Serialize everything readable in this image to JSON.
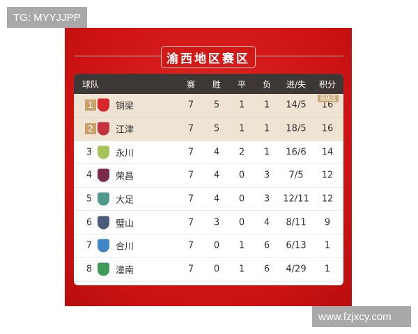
{
  "watermarks": {
    "top_left": "TG: MYYJJPP",
    "bottom_right": "www.fzjxcy.com"
  },
  "title": "渝西地区赛区",
  "headers": {
    "team": "球队",
    "played": "赛",
    "won": "胜",
    "drawn": "平",
    "lost": "负",
    "goals": "进/失",
    "points": "积分"
  },
  "promotion_badge": "晋级区",
  "colors": {
    "panel": "#d11a17",
    "header": "#3d3735",
    "promotion_row": "#efe4d4",
    "rank_badge": "#c8a26a"
  },
  "rows": [
    {
      "rank": "1",
      "team": "铜梁",
      "played": "7",
      "won": "5",
      "drawn": "1",
      "lost": "1",
      "goals": "14/5",
      "points": "16",
      "logo_color": "#d8262a"
    },
    {
      "rank": "2",
      "team": "江津",
      "played": "7",
      "won": "5",
      "drawn": "1",
      "lost": "1",
      "goals": "18/5",
      "points": "16",
      "logo_color": "#c5333f"
    },
    {
      "rank": "3",
      "team": "永川",
      "played": "7",
      "won": "4",
      "drawn": "2",
      "lost": "1",
      "goals": "16/6",
      "points": "14",
      "logo_color": "#a6c45a"
    },
    {
      "rank": "4",
      "team": "荣昌",
      "played": "7",
      "won": "4",
      "drawn": "0",
      "lost": "3",
      "goals": "7/5",
      "points": "12",
      "logo_color": "#7a2a4a"
    },
    {
      "rank": "5",
      "team": "大足",
      "played": "7",
      "won": "4",
      "drawn": "0",
      "lost": "3",
      "goals": "12/11",
      "points": "12",
      "logo_color": "#4f9a8a"
    },
    {
      "rank": "6",
      "team": "璧山",
      "played": "7",
      "won": "3",
      "drawn": "0",
      "lost": "4",
      "goals": "8/11",
      "points": "9",
      "logo_color": "#4a5a7a"
    },
    {
      "rank": "7",
      "team": "合川",
      "played": "7",
      "won": "0",
      "drawn": "1",
      "lost": "6",
      "goals": "6/13",
      "points": "1",
      "logo_color": "#3f86c6"
    },
    {
      "rank": "8",
      "team": "潼南",
      "played": "7",
      "won": "0",
      "drawn": "1",
      "lost": "6",
      "goals": "4/29",
      "points": "1",
      "logo_color": "#3e9a55"
    }
  ]
}
